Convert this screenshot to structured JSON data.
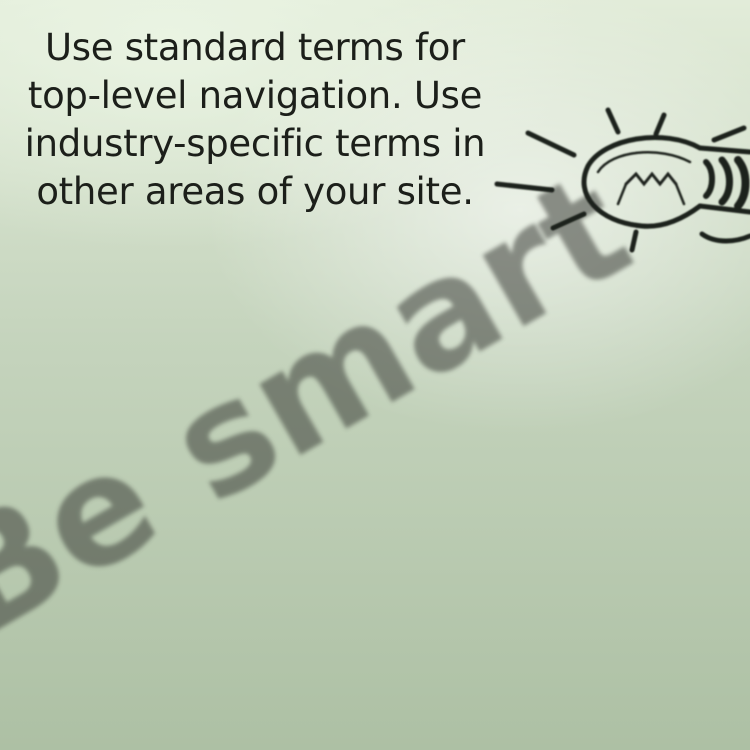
{
  "caption": {
    "text": "Use standard terms for top-level navigation. Use industry-specific terms in other areas of your site."
  },
  "handwriting": {
    "text": "Be smart"
  },
  "icons": {
    "lightbulb": "lightbulb-icon"
  },
  "colors": {
    "background": "#c5d4bd",
    "caption_text": "#1c1f1a",
    "ink": "#3b3e37"
  }
}
